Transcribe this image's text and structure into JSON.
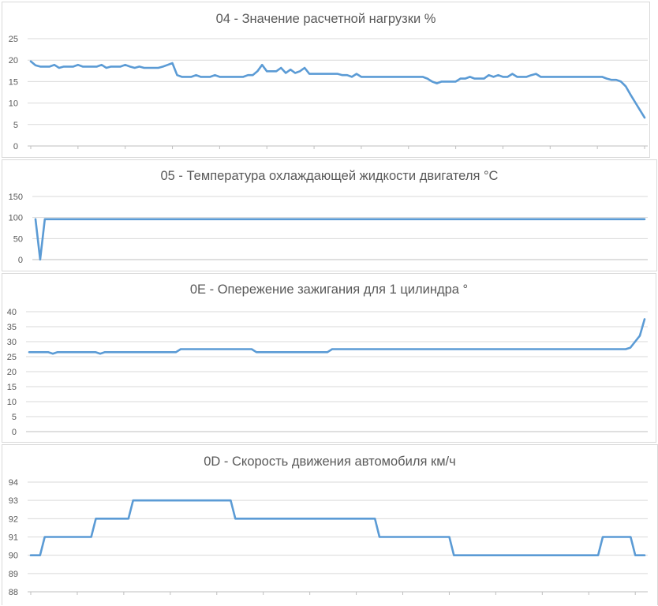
{
  "colors": {
    "series": "#5b9bd5",
    "grid": "#d9d9d9",
    "text": "#595959"
  },
  "chart_data": [
    {
      "type": "line",
      "title": "04 - Значение расчетной нагрузки %",
      "ylim": [
        0,
        25
      ],
      "yticks": [
        "0",
        "5",
        "10",
        "15",
        "20",
        "25"
      ],
      "grid": true,
      "legend": "none",
      "values": [
        19.7,
        18.8,
        18.5,
        18.5,
        18.5,
        18.9,
        18.2,
        18.5,
        18.5,
        18.5,
        18.9,
        18.5,
        18.5,
        18.5,
        18.5,
        18.9,
        18.2,
        18.5,
        18.5,
        18.5,
        18.9,
        18.5,
        18.2,
        18.5,
        18.2,
        18.2,
        18.2,
        18.2,
        18.5,
        18.9,
        19.3,
        16.5,
        16.1,
        16.1,
        16.1,
        16.5,
        16.1,
        16.1,
        16.1,
        16.5,
        16.1,
        16.1,
        16.1,
        16.1,
        16.1,
        16.1,
        16.5,
        16.5,
        17.4,
        18.9,
        17.4,
        17.4,
        17.4,
        18.2,
        17.0,
        17.8,
        17.0,
        17.4,
        18.2,
        16.8,
        16.8,
        16.8,
        16.8,
        16.8,
        16.8,
        16.8,
        16.5,
        16.5,
        16.1,
        16.8,
        16.1,
        16.1,
        16.1,
        16.1,
        16.1,
        16.1,
        16.1,
        16.1,
        16.1,
        16.1,
        16.1,
        16.1,
        16.1,
        16.1,
        15.7,
        15.0,
        14.6,
        15.0,
        15.0,
        15.0,
        15.0,
        15.7,
        15.7,
        16.1,
        15.7,
        15.7,
        15.7,
        16.5,
        16.1,
        16.5,
        16.1,
        16.1,
        16.8,
        16.1,
        16.1,
        16.1,
        16.5,
        16.8,
        16.1,
        16.1,
        16.1,
        16.1,
        16.1,
        16.1,
        16.1,
        16.1,
        16.1,
        16.1,
        16.1,
        16.1,
        16.1,
        16.1,
        15.7,
        15.4,
        15.4,
        15.0,
        13.9,
        12.0,
        10.2,
        8.4,
        6.6
      ]
    },
    {
      "type": "line",
      "title": "05 - Температура охлаждающей жидкости двигателя °C",
      "ylim": [
        0,
        150
      ],
      "yticks": [
        "0",
        "50",
        "100",
        "150"
      ],
      "grid": true,
      "legend": "none",
      "values": [
        96,
        0,
        96,
        96,
        96,
        96,
        96,
        96,
        96,
        96,
        96,
        96,
        96,
        96,
        96,
        96,
        96,
        96,
        96,
        96,
        96,
        96,
        96,
        96,
        96,
        96,
        96,
        96,
        96,
        96,
        96,
        96,
        96,
        96,
        96,
        96,
        96,
        96,
        96,
        96,
        96,
        96,
        96,
        96,
        96,
        96,
        96,
        96,
        96,
        96,
        96,
        96,
        96,
        96,
        96,
        96,
        96,
        96,
        96,
        96,
        96,
        96,
        96,
        96,
        96,
        96,
        96,
        96,
        96,
        96,
        96,
        96,
        96,
        96,
        96,
        96,
        96,
        96,
        96,
        96,
        96,
        96,
        96,
        96,
        96,
        96,
        96,
        96,
        96,
        96,
        96,
        96,
        96,
        96,
        96,
        96,
        96,
        96,
        96,
        96,
        96,
        96,
        96,
        96,
        96,
        96,
        96,
        96,
        96,
        96,
        96,
        96,
        96,
        96,
        96,
        96,
        96,
        96,
        96,
        96,
        96,
        96,
        96,
        96,
        96,
        96,
        96,
        96,
        96,
        96,
        96,
        96
      ]
    },
    {
      "type": "line",
      "title": "0E - Опережение зажигания для 1 цилиндра °",
      "ylim": [
        0,
        40
      ],
      "yticks": [
        "0",
        "5",
        "10",
        "15",
        "20",
        "25",
        "30",
        "35",
        "40"
      ],
      "grid": true,
      "legend": "none",
      "values": [
        26.5,
        26.5,
        26.5,
        26.5,
        26.5,
        26.0,
        26.5,
        26.5,
        26.5,
        26.5,
        26.5,
        26.5,
        26.5,
        26.5,
        26.5,
        26.0,
        26.5,
        26.5,
        26.5,
        26.5,
        26.5,
        26.5,
        26.5,
        26.5,
        26.5,
        26.5,
        26.5,
        26.5,
        26.5,
        26.5,
        26.5,
        26.5,
        27.5,
        27.5,
        27.5,
        27.5,
        27.5,
        27.5,
        27.5,
        27.5,
        27.5,
        27.5,
        27.5,
        27.5,
        27.5,
        27.5,
        27.5,
        27.5,
        26.5,
        26.5,
        26.5,
        26.5,
        26.5,
        26.5,
        26.5,
        26.5,
        26.5,
        26.5,
        26.5,
        26.5,
        26.5,
        26.5,
        26.5,
        26.5,
        27.5,
        27.5,
        27.5,
        27.5,
        27.5,
        27.5,
        27.5,
        27.5,
        27.5,
        27.5,
        27.5,
        27.5,
        27.5,
        27.5,
        27.5,
        27.5,
        27.5,
        27.5,
        27.5,
        27.5,
        27.5,
        27.5,
        27.5,
        27.5,
        27.5,
        27.5,
        27.5,
        27.5,
        27.5,
        27.5,
        27.5,
        27.5,
        27.5,
        27.5,
        27.5,
        27.5,
        27.5,
        27.5,
        27.5,
        27.5,
        27.5,
        27.5,
        27.5,
        27.5,
        27.5,
        27.5,
        27.5,
        27.5,
        27.5,
        27.5,
        27.5,
        27.5,
        27.5,
        27.5,
        27.5,
        27.5,
        27.5,
        27.5,
        27.5,
        27.5,
        27.5,
        27.5,
        27.5,
        28.0,
        30.0,
        32.0,
        37.5
      ]
    },
    {
      "type": "line",
      "title": "0D - Скорость движения автомобиля км/ч",
      "ylim": [
        88,
        94
      ],
      "yticks": [
        "88",
        "89",
        "90",
        "91",
        "92",
        "93",
        "94"
      ],
      "grid": true,
      "legend": "none",
      "values": [
        90,
        90,
        90,
        91,
        91,
        91,
        91,
        91,
        91,
        91,
        91,
        91,
        91,
        91,
        92,
        92,
        92,
        92,
        92,
        92,
        92,
        92,
        93,
        93,
        93,
        93,
        93,
        93,
        93,
        93,
        93,
        93,
        93,
        93,
        93,
        93,
        93,
        93,
        93,
        93,
        93,
        93,
        93,
        93,
        92,
        92,
        92,
        92,
        92,
        92,
        92,
        92,
        92,
        92,
        92,
        92,
        92,
        92,
        92,
        92,
        92,
        92,
        92,
        92,
        92,
        92,
        92,
        92,
        92,
        92,
        92,
        92,
        92,
        92,
        92,
        91,
        91,
        91,
        91,
        91,
        91,
        91,
        91,
        91,
        91,
        91,
        91,
        91,
        91,
        91,
        91,
        90,
        90,
        90,
        90,
        90,
        90,
        90,
        90,
        90,
        90,
        90,
        90,
        90,
        90,
        90,
        90,
        90,
        90,
        90,
        90,
        90,
        90,
        90,
        90,
        90,
        90,
        90,
        90,
        90,
        90,
        90,
        90,
        91,
        91,
        91,
        91,
        91,
        91,
        91,
        90,
        90,
        90
      ]
    }
  ]
}
